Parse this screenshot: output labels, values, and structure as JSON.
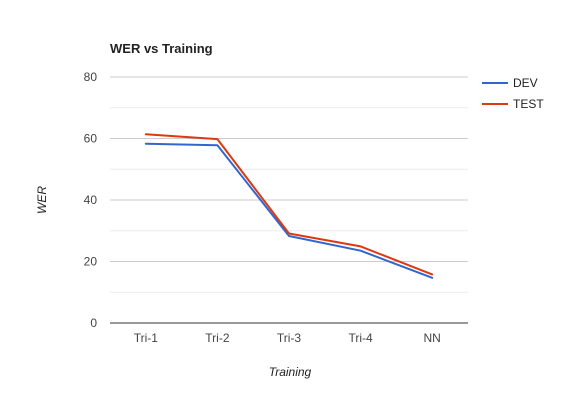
{
  "chart_data": {
    "type": "line",
    "title": "WER vs Training",
    "xlabel": "Training",
    "ylabel": "WER",
    "categories": [
      "Tri-1",
      "Tri-2",
      "Tri-3",
      "Tri-4",
      "NN"
    ],
    "ylim": [
      0,
      80
    ],
    "yticks": [
      0,
      20,
      40,
      60,
      80
    ],
    "grid": true,
    "legend_position": "right",
    "series": [
      {
        "name": "DEV",
        "color": "#3366cc",
        "values": [
          58.3,
          57.8,
          28.3,
          23.5,
          14.7
        ]
      },
      {
        "name": "TEST",
        "color": "#dc3912",
        "values": [
          61.4,
          59.8,
          29.1,
          24.9,
          15.8
        ]
      }
    ]
  }
}
